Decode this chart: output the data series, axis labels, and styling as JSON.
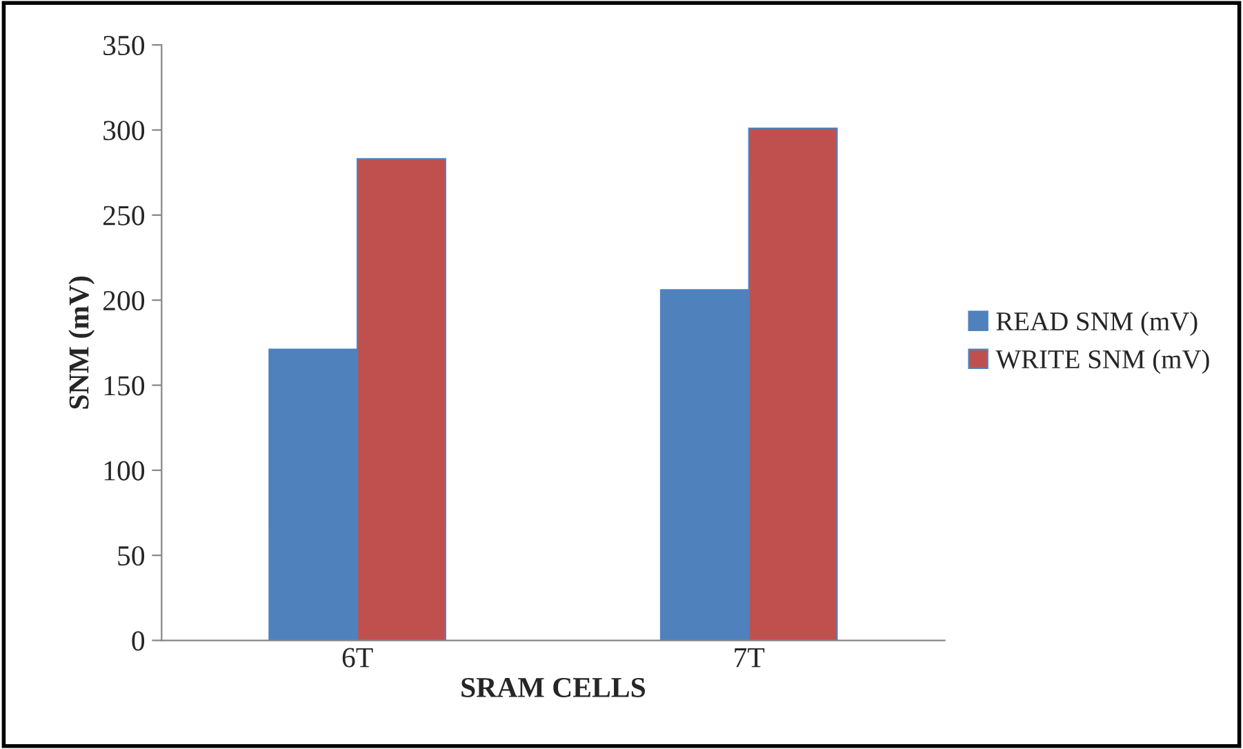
{
  "chart_data": {
    "type": "bar",
    "xlabel": "SRAM CELLS",
    "ylabel": "SNM (mV)",
    "categories": [
      "6T",
      "7T"
    ],
    "series": [
      {
        "name": "READ SNM (mV)",
        "color": "#4f81bd",
        "values": [
          171,
          206
        ]
      },
      {
        "name": "WRITE SNM (mV)",
        "color": "#c0504d",
        "values": [
          283,
          301
        ]
      }
    ],
    "ylim": [
      0,
      350
    ],
    "yticks": [
      0,
      50,
      100,
      150,
      200,
      250,
      300,
      350
    ],
    "grid": false,
    "legend": "right"
  }
}
